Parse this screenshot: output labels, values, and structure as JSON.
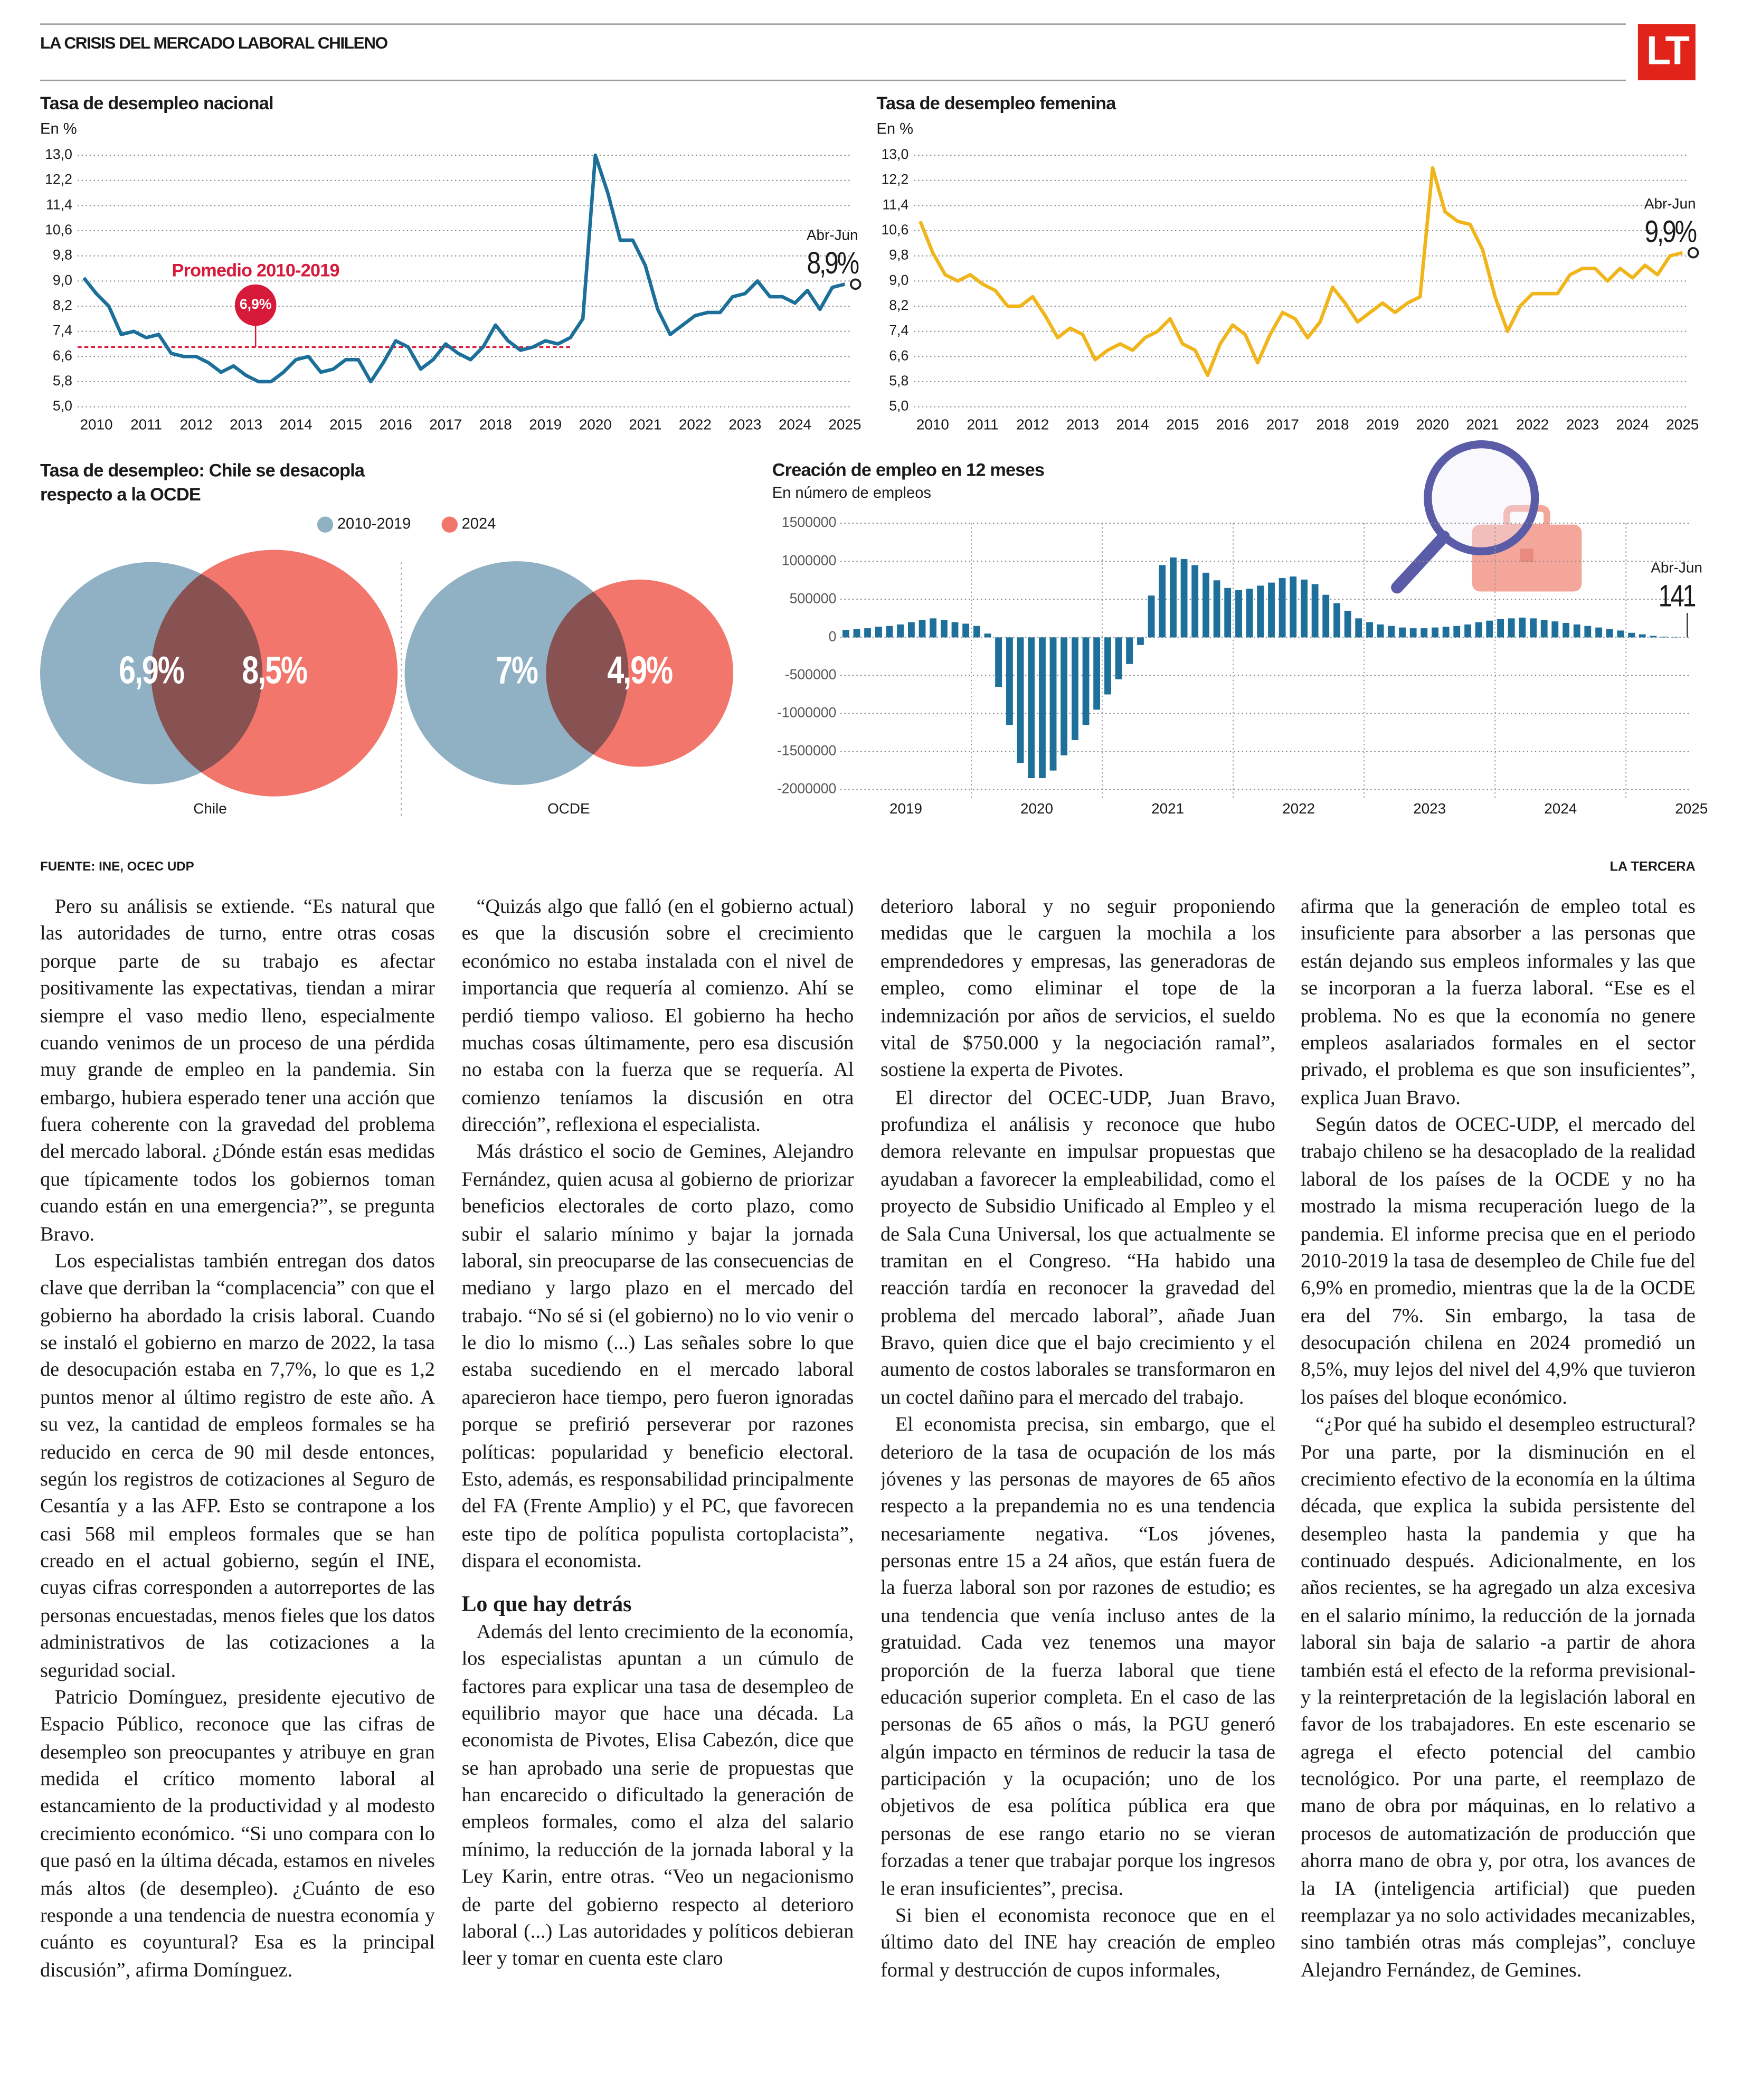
{
  "header": {
    "title": "LA CRISIS DEL MERCADO LABORAL CHILENO",
    "logo": "LT"
  },
  "chart_data": [
    {
      "type": "line",
      "title": "Tasa de desempleo nacional",
      "subtitle": "En %",
      "color": "#1b6f98",
      "x": [
        2010.125,
        2010.375,
        2010.625,
        2010.875,
        2011.125,
        2011.375,
        2011.625,
        2011.875,
        2012.125,
        2012.375,
        2012.625,
        2012.875,
        2013.125,
        2013.375,
        2013.625,
        2013.875,
        2014.125,
        2014.375,
        2014.625,
        2014.875,
        2015.125,
        2015.375,
        2015.625,
        2015.875,
        2016.125,
        2016.375,
        2016.625,
        2016.875,
        2017.125,
        2017.375,
        2017.625,
        2017.875,
        2018.125,
        2018.375,
        2018.625,
        2018.875,
        2019.125,
        2019.375,
        2019.625,
        2019.875,
        2020.125,
        2020.375,
        2020.625,
        2020.875,
        2021.125,
        2021.375,
        2021.625,
        2021.875,
        2022.125,
        2022.375,
        2022.625,
        2022.875,
        2023.125,
        2023.375,
        2023.625,
        2023.875,
        2024.125,
        2024.375,
        2024.625,
        2024.875,
        2025.125,
        2025.375
      ],
      "values": [
        9.1,
        8.6,
        8.2,
        7.3,
        7.4,
        7.2,
        7.3,
        6.7,
        6.6,
        6.6,
        6.4,
        6.1,
        6.3,
        6.0,
        5.8,
        5.8,
        6.1,
        6.5,
        6.6,
        6.1,
        6.2,
        6.5,
        6.5,
        5.8,
        6.4,
        7.1,
        6.9,
        6.2,
        6.5,
        7.0,
        6.7,
        6.5,
        6.9,
        7.6,
        7.1,
        6.8,
        6.9,
        7.1,
        7.0,
        7.2,
        7.8,
        13.0,
        11.8,
        10.3,
        10.3,
        9.5,
        8.1,
        7.3,
        7.6,
        7.9,
        8.0,
        8.0,
        8.5,
        8.6,
        9.0,
        8.5,
        8.5,
        8.3,
        8.7,
        8.1,
        8.8,
        8.9
      ],
      "xlim": [
        2010,
        2025.5
      ],
      "xticks": [
        2010,
        2011,
        2012,
        2013,
        2014,
        2015,
        2016,
        2017,
        2018,
        2019,
        2020,
        2021,
        2022,
        2023,
        2024,
        2025
      ],
      "ylim": [
        5.0,
        13.0
      ],
      "yticks": [
        {
          "value": 5.0,
          "label": "5,0"
        },
        {
          "value": 5.8,
          "label": "5,8"
        },
        {
          "value": 6.6,
          "label": "6,6"
        },
        {
          "value": 7.4,
          "label": "7,4"
        },
        {
          "value": 8.2,
          "label": "8,2"
        },
        {
          "value": 9.0,
          "label": "9,0"
        },
        {
          "value": 9.8,
          "label": "9,8"
        },
        {
          "value": 10.6,
          "label": "10,6"
        },
        {
          "value": 11.4,
          "label": "11,4"
        },
        {
          "value": 12.2,
          "label": "12,2"
        },
        {
          "value": 13.0,
          "label": "13,0"
        }
      ],
      "grid": true,
      "reference_line": {
        "label": "Promedio 2010-2019",
        "value": 6.9,
        "value_label": "6,9%",
        "x_range": [
          2010,
          2019.9
        ],
        "color": "#d7193a"
      },
      "end_label": {
        "period": "Abr-Jun",
        "value_label": "8,9%"
      }
    },
    {
      "type": "line",
      "title": "Tasa de desempleo femenina",
      "subtitle": "En %",
      "color": "#f1b51c",
      "x": [
        2010.125,
        2010.375,
        2010.625,
        2010.875,
        2011.125,
        2011.375,
        2011.625,
        2011.875,
        2012.125,
        2012.375,
        2012.625,
        2012.875,
        2013.125,
        2013.375,
        2013.625,
        2013.875,
        2014.125,
        2014.375,
        2014.625,
        2014.875,
        2015.125,
        2015.375,
        2015.625,
        2015.875,
        2016.125,
        2016.375,
        2016.625,
        2016.875,
        2017.125,
        2017.375,
        2017.625,
        2017.875,
        2018.125,
        2018.375,
        2018.625,
        2018.875,
        2019.125,
        2019.375,
        2019.625,
        2019.875,
        2020.125,
        2020.375,
        2020.625,
        2020.875,
        2021.125,
        2021.375,
        2021.625,
        2021.875,
        2022.125,
        2022.375,
        2022.625,
        2022.875,
        2023.125,
        2023.375,
        2023.625,
        2023.875,
        2024.125,
        2024.375,
        2024.625,
        2024.875,
        2025.125,
        2025.375
      ],
      "values": [
        10.9,
        9.9,
        9.2,
        9.0,
        9.2,
        8.9,
        8.7,
        8.2,
        8.2,
        8.5,
        7.9,
        7.2,
        7.5,
        7.3,
        6.5,
        6.8,
        7.0,
        6.8,
        7.2,
        7.4,
        7.8,
        7.0,
        6.8,
        6.0,
        7.0,
        7.6,
        7.3,
        6.4,
        7.3,
        8.0,
        7.8,
        7.2,
        7.7,
        8.8,
        8.3,
        7.7,
        8.0,
        8.3,
        8.0,
        8.3,
        8.5,
        12.6,
        11.2,
        10.9,
        10.8,
        10.0,
        8.5,
        7.4,
        8.2,
        8.6,
        8.6,
        8.6,
        9.2,
        9.4,
        9.4,
        9.0,
        9.4,
        9.1,
        9.5,
        9.2,
        9.8,
        9.9
      ],
      "xlim": [
        2010,
        2025.5
      ],
      "xticks": [
        2010,
        2011,
        2012,
        2013,
        2014,
        2015,
        2016,
        2017,
        2018,
        2019,
        2020,
        2021,
        2022,
        2023,
        2024,
        2025
      ],
      "ylim": [
        5.0,
        13.0
      ],
      "yticks": [
        {
          "value": 5.0,
          "label": "5,0"
        },
        {
          "value": 5.8,
          "label": "5,8"
        },
        {
          "value": 6.6,
          "label": "6,6"
        },
        {
          "value": 7.4,
          "label": "7,4"
        },
        {
          "value": 8.2,
          "label": "8,2"
        },
        {
          "value": 9.0,
          "label": "9,0"
        },
        {
          "value": 9.8,
          "label": "9,8"
        },
        {
          "value": 10.6,
          "label": "10,6"
        },
        {
          "value": 11.4,
          "label": "11,4"
        },
        {
          "value": 12.2,
          "label": "12,2"
        },
        {
          "value": 13.0,
          "label": "13,0"
        }
      ],
      "grid": true,
      "end_label": {
        "period": "Abr-Jun",
        "value_label": "9,9%"
      }
    },
    {
      "type": "venn",
      "title": "Tasa de desempleo: Chile se desacopla respecto a la OCDE",
      "categories": [
        "Chile",
        "OCDE"
      ],
      "series": [
        {
          "name": "2010-2019",
          "color": "#8fb1c3",
          "values": [
            6.9,
            7
          ],
          "value_labels": [
            "6,9%",
            "7%"
          ]
        },
        {
          "name": "2024",
          "color": "#f2766b",
          "values": [
            8.5,
            4.9
          ],
          "value_labels": [
            "8,5%",
            "4,9%"
          ]
        }
      ]
    },
    {
      "type": "bar",
      "title": "Creación de empleo en 12 meses",
      "subtitle": "En número de empleos",
      "color": "#1e6f9a",
      "x": [
        2019.042,
        2019.125,
        2019.208,
        2019.292,
        2019.375,
        2019.458,
        2019.542,
        2019.625,
        2019.708,
        2019.792,
        2019.875,
        2019.958,
        2020.042,
        2020.125,
        2020.208,
        2020.292,
        2020.375,
        2020.458,
        2020.542,
        2020.625,
        2020.708,
        2020.792,
        2020.875,
        2020.958,
        2021.042,
        2021.125,
        2021.208,
        2021.292,
        2021.375,
        2021.458,
        2021.542,
        2021.625,
        2021.708,
        2021.792,
        2021.875,
        2021.958,
        2022.042,
        2022.125,
        2022.208,
        2022.292,
        2022.375,
        2022.458,
        2022.542,
        2022.625,
        2022.708,
        2022.792,
        2022.875,
        2022.958,
        2023.042,
        2023.125,
        2023.208,
        2023.292,
        2023.375,
        2023.458,
        2023.542,
        2023.625,
        2023.708,
        2023.792,
        2023.875,
        2023.958,
        2024.042,
        2024.125,
        2024.208,
        2024.292,
        2024.375,
        2024.458,
        2024.542,
        2024.625,
        2024.708,
        2024.792,
        2024.875,
        2024.958,
        2025.042,
        2025.125,
        2025.208,
        2025.292,
        2025.375,
        2025.458
      ],
      "values": [
        100000,
        110000,
        120000,
        140000,
        150000,
        170000,
        200000,
        230000,
        250000,
        230000,
        200000,
        180000,
        150000,
        50000,
        -650000,
        -1150000,
        -1650000,
        -1850000,
        -1850000,
        -1750000,
        -1550000,
        -1350000,
        -1150000,
        -950000,
        -750000,
        -550000,
        -350000,
        -100000,
        550000,
        950000,
        1050000,
        1030000,
        950000,
        850000,
        750000,
        650000,
        620000,
        640000,
        680000,
        720000,
        780000,
        800000,
        760000,
        700000,
        560000,
        450000,
        350000,
        250000,
        200000,
        170000,
        150000,
        130000,
        120000,
        120000,
        130000,
        140000,
        150000,
        170000,
        200000,
        220000,
        240000,
        250000,
        260000,
        250000,
        230000,
        210000,
        190000,
        170000,
        150000,
        130000,
        110000,
        90000,
        60000,
        40000,
        20000,
        10000,
        5000,
        141
      ],
      "xlim": [
        2019,
        2025.5
      ],
      "xticks": [
        2019,
        2020,
        2021,
        2022,
        2023,
        2024,
        2025
      ],
      "ylim": [
        -2000000,
        1500000
      ],
      "yticks": [
        -2000000,
        -1500000,
        -1000000,
        -500000,
        0,
        500000,
        1000000,
        1500000
      ],
      "grid": true,
      "end_label": {
        "period": "Abr-Jun",
        "value_label": "141"
      }
    }
  ],
  "footer": {
    "source": "FUENTE: INE, OCEC UDP",
    "publisher": "LA TERCERA"
  },
  "article": {
    "columns": [
      [
        {
          "text": "Pero su análisis se extiende. “Es natural que las autoridades de turno, entre otras cosas porque parte de su trabajo es afectar positivamente las expectativas, tiendan a mirar siempre el vaso medio lleno, especialmente cuando venimos de un proceso de una pérdida muy grande de empleo en la pandemia. Sin embargo, hubiera esperado tener una acción que fuera coherente con la gravedad del problema del mercado laboral. ¿Dónde están esas medidas que típicamente todos los gobiernos toman cuando están en una emergencia?”, se pregunta Bravo."
        },
        {
          "text": "Los especialistas también entregan dos datos clave que derriban la “complacencia” con que el gobierno ha abordado la crisis laboral. Cuando se instaló el gobierno en marzo de 2022, la tasa de desocupación estaba en 7,7%, lo que es 1,2 puntos menor al último registro de este año. A su vez, la cantidad de empleos formales se ha reducido en cerca de 90 mil desde entonces, según los registros de cotizaciones al Seguro de Cesantía y a las AFP. Esto se contrapone a los casi 568 mil empleos formales que se han creado en el actual gobierno, según el INE, cuyas cifras corresponden a autorreportes de las personas encuestadas, menos fieles que los datos administrativos de las cotizaciones a la seguridad social."
        },
        {
          "text": "Patricio Domínguez, presidente ejecutivo de Espacio Público, reconoce que las cifras de desempleo son preocupantes y atribuye en gran medida el crítico momento laboral al estancamiento de la productividad y al modesto crecimiento económico. “Si uno compara con lo que pasó en la última década, estamos en niveles más altos (de desempleo). ¿Cuánto de eso responde a una tendencia de nuestra economía y cuánto es coyuntural? Esa es la principal discusión”, afirma Domínguez."
        }
      ],
      [
        {
          "text": "“Quizás algo que falló (en el gobierno actual) es que la discusión sobre el crecimiento económico no estaba instalada con el nivel de importancia que requería al comienzo. Ahí se perdió tiempo valioso. El gobierno ha hecho muchas cosas últimamente, pero esa discusión no estaba con la fuerza que se requería. Al comienzo teníamos la discusión en otra dirección”, reflexiona el especialista."
        },
        {
          "text": "Más drástico el socio de Gemines, Alejandro Fernández, quien acusa al gobierno de priorizar beneficios electorales de corto plazo, como subir el salario mínimo y bajar la jornada laboral, sin preocuparse de las consecuencias de mediano y largo plazo en el mercado del trabajo. “No sé si (el gobierno) no lo vio venir o le dio lo mismo (...) Las señales sobre lo que estaba sucediendo en el mercado laboral aparecieron hace tiempo, pero fueron ignoradas porque se prefirió perseverar por razones políticas: popularidad y beneficio electoral. Esto, además, es responsabilidad principalmente del FA (Frente Amplio) y el PC, que favorecen este tipo de política populista cortoplacista”, dispara el economista."
        },
        {
          "heading": "Lo que hay detrás"
        },
        {
          "text": "Además del lento crecimiento de la economía, los especialistas apuntan a un cúmulo de factores para explicar una tasa de desempleo de equilibrio mayor que hace una década. La economista de Pivotes, Elisa Cabezón, dice que se han aprobado una serie de propuestas que han encarecido o dificultado la generación de empleos formales, como el alza del salario mínimo, la reducción de la jornada laboral y la Ley Karin, entre otras. “Veo un negacionismo de parte del gobierno respecto al deterioro laboral (...) Las autoridades y políticos debieran leer y tomar en cuenta este claro"
        }
      ],
      [
        {
          "text": "deterioro laboral y no seguir proponiendo medidas que le carguen la mochila a los emprendedores y empresas, las generadoras de empleo, como eliminar el tope de la indemnización por años de servicios, el sueldo vital de $750.000 y la negociación ramal”, sostiene la experta de Pivotes."
        },
        {
          "text": "El director del OCEC-UDP, Juan Bravo, profundiza el análisis y reconoce que hubo demora relevante en impulsar propuestas que ayudaban a favorecer la empleabilidad, como el proyecto de Subsidio Unificado al Empleo y el de Sala Cuna Universal, los que actualmente se tramitan en el Congreso. “Ha habido una reacción tardía en reconocer la gravedad del problema del mercado laboral”, añade Juan Bravo, quien dice que el bajo crecimiento y el aumento de costos laborales se transformaron en un coctel dañino para el mercado del trabajo."
        },
        {
          "text": "El economista precisa, sin embargo, que el deterioro de la tasa de ocupación de los más jóvenes y las personas de mayores de 65 años respecto a la prepandemia no es una tendencia necesariamente negativa. “Los jóvenes, personas entre 15 a 24 años, que están fuera de la fuerza laboral son por razones de estudio; es una tendencia que venía incluso antes de la gratuidad. Cada vez tenemos una mayor proporción de la fuerza laboral que tiene educación superior completa. En el caso de las personas de 65 años o más, la PGU generó algún impacto en términos de reducir la tasa de participación y la ocupación; uno de los objetivos de esa política pública era que personas de ese rango etario no se vieran forzadas a tener que trabajar porque los ingresos le eran insuficientes”, precisa."
        },
        {
          "text": "Si bien el economista reconoce que en el último dato del INE hay creación de empleo formal y destrucción de cupos informales,"
        }
      ],
      [
        {
          "text": "afirma que la generación de empleo total es insuficiente para absorber a las personas que están dejando sus empleos informales y las que se incorporan a la fuerza laboral. “Ese es el problema. No es que la economía no genere empleos asalariados formales en el sector privado, el problema es que son insuficientes”, explica Juan Bravo."
        },
        {
          "text": "Según datos de OCEC-UDP, el mercado del trabajo chileno se ha desacoplado de la realidad laboral de los países de la OCDE y no ha mostrado la misma recuperación luego de la pandemia. El informe precisa que en el periodo 2010-2019 la tasa de desempleo de Chile fue del 6,9% en promedio, mientras que la de la OCDE era del 7%. Sin embargo, la tasa de desocupación chilena en 2024 promedió un 8,5%, muy lejos del nivel del 4,9% que tuvieron los países del bloque económico."
        },
        {
          "text": "“¿Por qué ha subido el desempleo estructural? Por una parte, por la disminución en el crecimiento efectivo de la economía en la última década, que explica la subida persistente del desempleo hasta la pandemia y que ha continuado después. Adicionalmente, en los años recientes, se ha agregado un alza excesiva en el salario mínimo, la reducción de la jornada laboral sin baja de salario -a partir de ahora también está el efecto de la reforma previsional- y la reinterpretación de la legislación laboral en favor de los trabajadores. En este escenario se agrega el efecto potencial del cambio tecnológico. Por una parte, el reemplazo de mano de obra por máquinas, en lo relativo a procesos de automatización de producción que ahorra mano de obra y, por otra, los avances de la IA (inteligencia artificial) que pueden reemplazar ya no solo actividades mecanizables, sino también otras más complejas”, concluye Alejandro Fernández, de Gemines."
        }
      ]
    ]
  }
}
